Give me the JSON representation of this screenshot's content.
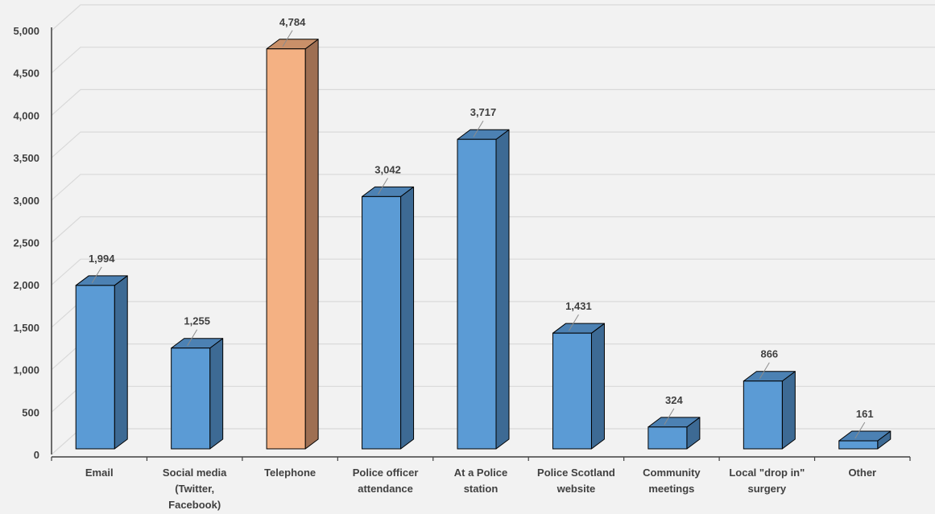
{
  "chart_data": {
    "type": "bar",
    "style": "3d-column",
    "categories": [
      "Email",
      "Social media (Twitter, Facebook)",
      "Telephone",
      "Police officer attendance",
      "At a Police station",
      "Police Scotland website",
      "Community meetings",
      "Local \"drop in\" surgery",
      "Other"
    ],
    "category_lines": [
      [
        "Email"
      ],
      [
        "Social media",
        "(Twitter,",
        "Facebook)"
      ],
      [
        "Telephone"
      ],
      [
        "Police officer",
        "attendance"
      ],
      [
        "At a Police",
        "station"
      ],
      [
        "Police Scotland",
        "website"
      ],
      [
        "Community",
        "meetings"
      ],
      [
        "Local \"drop in\"",
        "surgery"
      ],
      [
        "Other"
      ]
    ],
    "values": [
      1994,
      1255,
      4784,
      3042,
      3717,
      1431,
      324,
      866,
      161
    ],
    "data_labels": [
      "1,994",
      "1,255",
      "4,784",
      "3,042",
      "3,717",
      "1,431",
      "324",
      "866",
      "161"
    ],
    "highlight_index": 2,
    "colors": {
      "bar": "#5b9bd5",
      "bar_side": "#3d6a94",
      "bar_top": "#4c81b3",
      "highlight": "#f4b183",
      "highlight_side": "#9e6f52",
      "highlight_top": "#c99069",
      "grid": "#d9d9d9",
      "axis": "#404040"
    },
    "yticks": [
      0,
      500,
      1000,
      1500,
      2000,
      2500,
      3000,
      3500,
      4000,
      4500,
      5000
    ],
    "ytick_labels": [
      "0",
      "500",
      "1,000",
      "1,500",
      "2,000",
      "2,500",
      "3,000",
      "3,500",
      "4,000",
      "4,500",
      "5,000"
    ],
    "ylim": [
      0,
      5000
    ],
    "grid": true,
    "legend": false,
    "title": "",
    "xlabel": "",
    "ylabel": ""
  }
}
